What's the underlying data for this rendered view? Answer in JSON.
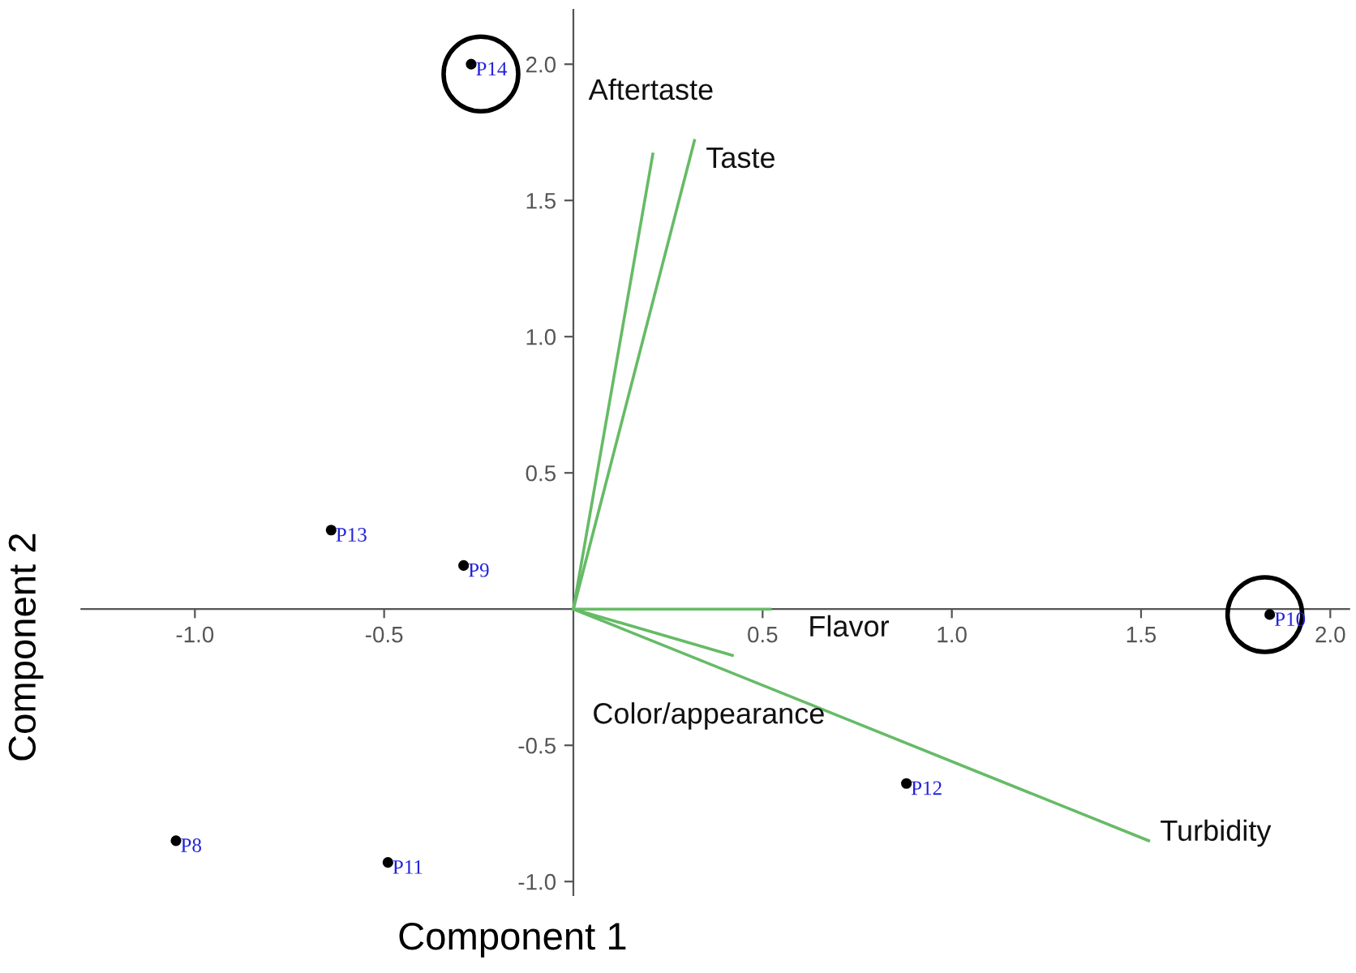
{
  "chart_data": {
    "type": "scatter",
    "xlabel": "Component 1",
    "ylabel": "Component 2",
    "xlim": [
      -1.3,
      2.05
    ],
    "ylim": [
      -1.05,
      2.2
    ],
    "xticks": [
      {
        "value": -1.0,
        "label": "-1.0"
      },
      {
        "value": -0.5,
        "label": "-0.5"
      },
      {
        "value": 0.5,
        "label": "0.5"
      },
      {
        "value": 1.0,
        "label": "1.0"
      },
      {
        "value": 1.5,
        "label": "1.5"
      },
      {
        "value": 2.0,
        "label": "2.0"
      }
    ],
    "yticks": [
      {
        "value": -1.0,
        "label": "-1.0"
      },
      {
        "value": -0.5,
        "label": "-0.5"
      },
      {
        "value": 0.5,
        "label": "0.5"
      },
      {
        "value": 1.0,
        "label": "1.0"
      },
      {
        "value": 1.5,
        "label": "1.5"
      },
      {
        "value": 2.0,
        "label": "2.0"
      }
    ],
    "grid": false,
    "series": [
      {
        "color": "#000000",
        "marker": "circle",
        "x": [
          -0.27,
          -0.64,
          -0.29,
          1.84,
          0.88,
          -1.05,
          -0.49
        ],
        "values": [
          2.0,
          0.29,
          0.16,
          -0.02,
          -0.64,
          -0.85,
          -0.93
        ]
      },
      {
        "type": "line",
        "color": "#66bb66",
        "x": [
          0,
          0.21
        ],
        "values": [
          0,
          1.67
        ]
      },
      {
        "type": "line",
        "color": "#66bb66",
        "x": [
          0,
          0.32
        ],
        "values": [
          0,
          1.72
        ]
      },
      {
        "type": "line",
        "color": "#66bb66",
        "x": [
          0,
          0.52
        ],
        "values": [
          0,
          0.0
        ]
      },
      {
        "type": "line",
        "color": "#66bb66",
        "x": [
          0,
          0.42
        ],
        "values": [
          0,
          -0.17
        ]
      },
      {
        "type": "line",
        "color": "#66bb66",
        "x": [
          0,
          1.52
        ],
        "values": [
          0,
          -0.85
        ]
      }
    ],
    "annotations": [
      {
        "text": "P14",
        "x": -0.27,
        "y": 2.0
      },
      {
        "text": "P13",
        "x": -0.64,
        "y": 0.29
      },
      {
        "text": "P9",
        "x": -0.29,
        "y": 0.16
      },
      {
        "text": "P10",
        "x": 1.84,
        "y": -0.02
      },
      {
        "text": "P12",
        "x": 0.88,
        "y": -0.64
      },
      {
        "text": "P8",
        "x": -1.05,
        "y": -0.85
      },
      {
        "text": "P11",
        "x": -0.49,
        "y": -0.93
      },
      {
        "text": "Aftertaste",
        "x": 0.21,
        "y": 1.67
      },
      {
        "text": "Taste",
        "x": 0.32,
        "y": 1.72
      },
      {
        "text": "Flavor",
        "x": 0.52,
        "y": 0.0
      },
      {
        "text": "Color/appearance",
        "x": 0.42,
        "y": -0.17
      },
      {
        "text": "Turbidity",
        "x": 1.52,
        "y": -0.85
      }
    ]
  }
}
